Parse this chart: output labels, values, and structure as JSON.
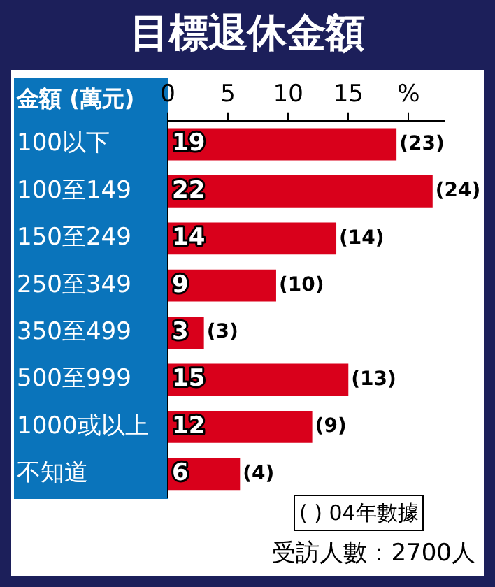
{
  "chart_data": {
    "type": "bar",
    "orientation": "horizontal",
    "title": "目標退休金額",
    "ylabel": "金額 (萬元)",
    "categories": [
      "100以下",
      "100至149",
      "150至249",
      "250至349",
      "350至499",
      "500至999",
      "1000或以上",
      "不知道"
    ],
    "values": [
      19,
      22,
      14,
      9,
      3,
      15,
      12,
      6
    ],
    "value_labels": [
      "19",
      "22",
      "14",
      "9",
      "3",
      "15",
      "12",
      "6"
    ],
    "color": "#d9001b",
    "xlim": [
      0,
      23
    ],
    "xticks": [
      0,
      5,
      10,
      15,
      {
        "value": 20,
        "label": "%"
      }
    ],
    "grid": false,
    "annotations": [
      {
        "text": "(23)",
        "x": 19,
        "y": "100以下"
      },
      {
        "text": "(24)",
        "x": 22,
        "y": "100至149"
      },
      {
        "text": "(14)",
        "x": 14,
        "y": "150至249"
      },
      {
        "text": "(10)",
        "x": 9,
        "y": "250至349"
      },
      {
        "text": "(3)",
        "x": 3,
        "y": "350至499"
      },
      {
        "text": "(13)",
        "x": 15,
        "y": "500至999"
      },
      {
        "text": "(9)",
        "x": 12,
        "y": "1000或以上"
      },
      {
        "text": "(4)",
        "x": 6,
        "y": "不知道"
      },
      "( ) 04年數據",
      "受訪人數：2700人"
    ]
  }
}
